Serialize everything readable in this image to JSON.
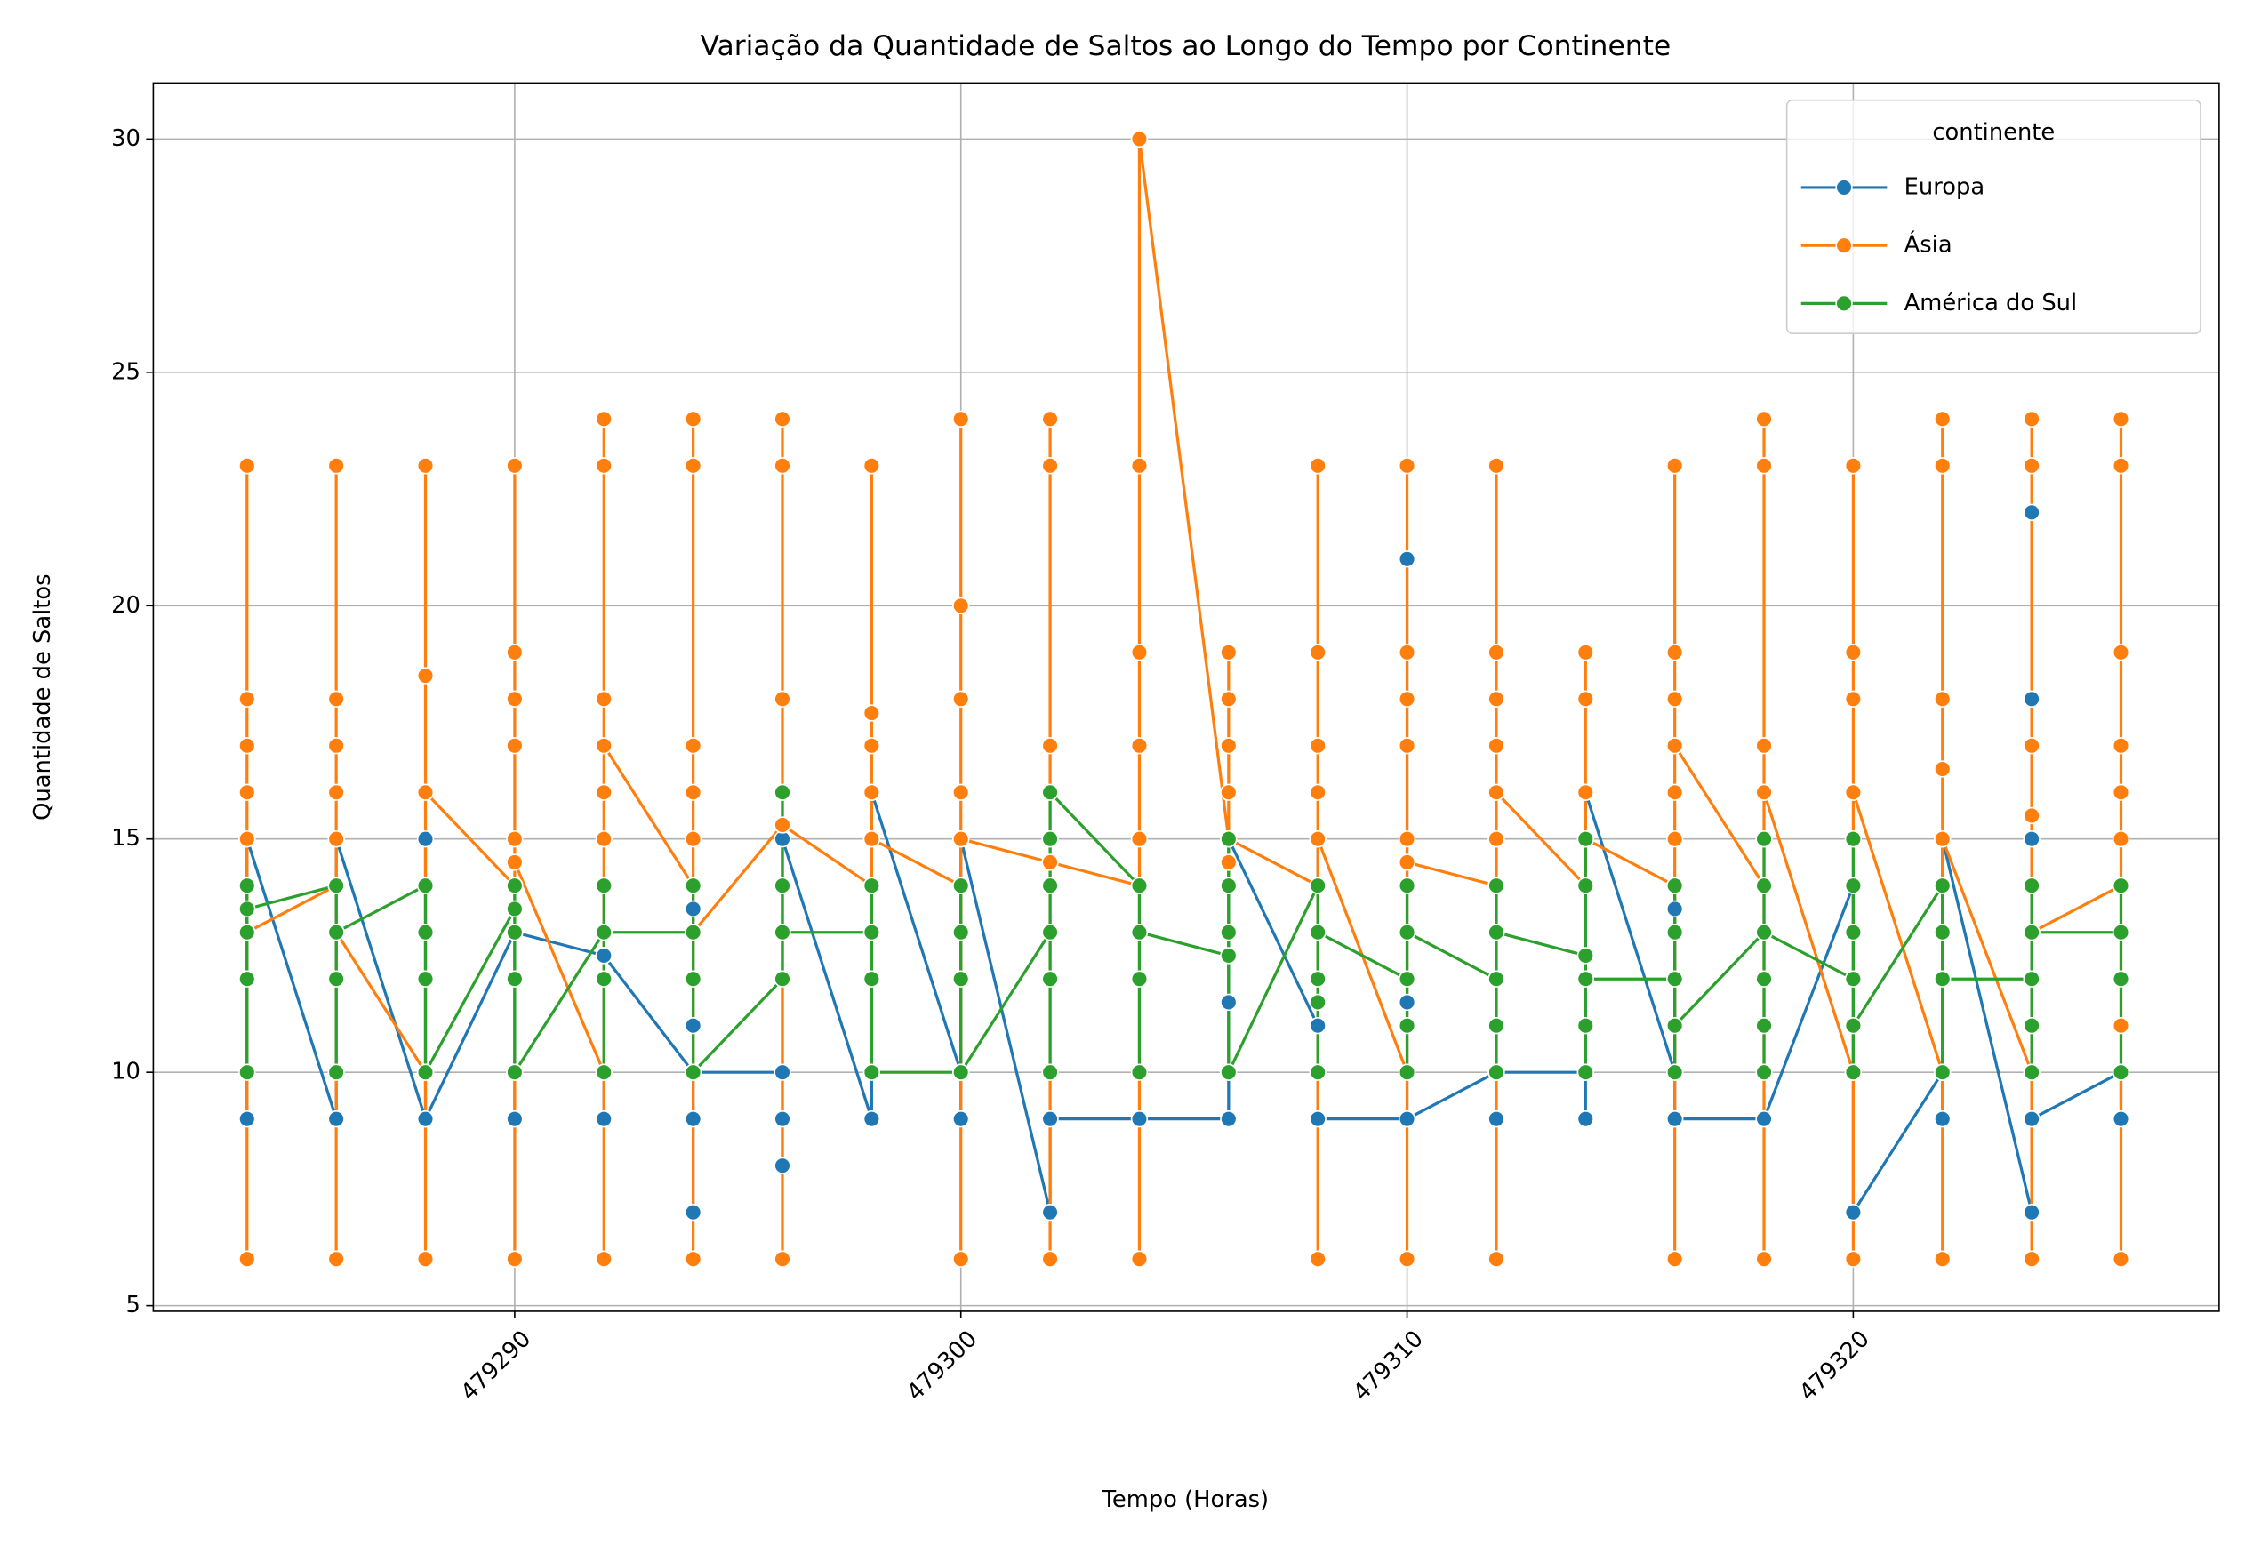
{
  "chart_data": {
    "type": "line",
    "title": "Variação da Quantidade de Saltos ao Longo do Tempo por Continente",
    "x_label": "Tempo (Horas)",
    "y_label": "Quantidade de Saltos",
    "legend_title": "continente",
    "legend_position": "upper right",
    "grid": true,
    "xlim": [
      479281.9,
      479328.2
    ],
    "xticks": [
      479290,
      479300,
      479310,
      479320
    ],
    "ylim": [
      4.88,
      31.2
    ],
    "yticks": [
      5,
      10,
      15,
      20,
      25,
      30
    ],
    "series": [
      {
        "name": "Europa",
        "color": "#1f77b4",
        "x": [
          479284,
          479284,
          479286,
          479286,
          479288,
          479288,
          479288,
          479290,
          479290,
          479290,
          479292,
          479292,
          479292,
          479294,
          479294,
          479294,
          479294,
          479294,
          479294,
          479296,
          479296,
          479296,
          479296,
          479298,
          479298,
          479300,
          479300,
          479300,
          479302,
          479302,
          479304,
          479306,
          479306,
          479306,
          479308,
          479308,
          479308,
          479310,
          479310,
          479310,
          479310,
          479312,
          479312,
          479312,
          479312,
          479312,
          479314,
          479314,
          479314,
          479316,
          479316,
          479316,
          479316,
          479318,
          479320,
          479320,
          479322,
          479322,
          479322,
          479324,
          479324,
          479324,
          479324,
          479324,
          479326,
          479326
        ],
        "values": [
          9,
          15,
          9,
          15,
          9,
          15,
          9,
          13,
          9,
          13,
          12.5,
          9,
          12.5,
          10,
          7,
          13.5,
          11,
          9,
          10,
          10,
          8,
          9,
          15,
          9,
          16,
          10,
          9,
          15,
          7,
          9,
          9,
          9,
          11.5,
          15,
          11,
          15,
          9,
          9,
          11.5,
          21,
          9,
          10,
          13,
          15,
          9,
          10,
          10,
          9,
          16,
          10,
          9,
          13.5,
          9,
          9,
          14,
          7,
          10,
          9,
          15,
          7,
          18,
          22,
          15,
          9,
          10,
          9
        ]
      },
      {
        "name": "Ásia",
        "color": "#ff7f0e",
        "x": [
          479284,
          479284,
          479284,
          479284,
          479284,
          479284,
          479284,
          479284,
          479286,
          479286,
          479286,
          479286,
          479286,
          479286,
          479286,
          479286,
          479288,
          479288,
          479288,
          479288,
          479288,
          479288,
          479290,
          479290,
          479290,
          479290,
          479290,
          479290,
          479290,
          479290,
          479292,
          479292,
          479292,
          479292,
          479292,
          479292,
          479292,
          479292,
          479294,
          479294,
          479294,
          479294,
          479294,
          479294,
          479294,
          479294,
          479296,
          479296,
          479296,
          479296,
          479296,
          479296,
          479296,
          479298,
          479298,
          479298,
          479298,
          479298,
          479298,
          479298,
          479300,
          479300,
          479300,
          479300,
          479300,
          479300,
          479300,
          479302,
          479302,
          479302,
          479302,
          479302,
          479302,
          479302,
          479304,
          479304,
          479304,
          479304,
          479304,
          479304,
          479304,
          479306,
          479306,
          479306,
          479306,
          479306,
          479306,
          479306,
          479306,
          479308,
          479308,
          479308,
          479308,
          479308,
          479308,
          479308,
          479308,
          479310,
          479310,
          479310,
          479310,
          479310,
          479310,
          479310,
          479310,
          479312,
          479312,
          479312,
          479312,
          479312,
          479312,
          479312,
          479312,
          479314,
          479314,
          479314,
          479314,
          479314,
          479314,
          479316,
          479316,
          479316,
          479316,
          479316,
          479316,
          479316,
          479316,
          479318,
          479318,
          479318,
          479318,
          479318,
          479318,
          479318,
          479318,
          479320,
          479320,
          479320,
          479320,
          479320,
          479320,
          479320,
          479320,
          479322,
          479322,
          479322,
          479322,
          479322,
          479322,
          479322,
          479322,
          479324,
          479324,
          479324,
          479324,
          479324,
          479324,
          479324,
          479326,
          479326,
          479326,
          479326,
          479326,
          479326,
          479326,
          479326,
          479326
        ],
        "values": [
          13,
          6,
          15,
          16,
          17,
          18,
          23,
          13,
          14,
          6,
          15,
          16,
          17,
          18,
          23,
          13,
          10,
          6,
          16,
          18.5,
          23,
          16,
          14,
          6,
          15,
          17,
          18,
          19,
          23,
          14.5,
          10,
          6,
          15,
          16,
          18,
          23,
          24,
          17,
          14,
          6,
          15,
          16,
          17,
          23,
          24,
          13,
          15.3,
          6,
          14,
          18,
          23,
          24,
          15.3,
          14,
          15,
          16,
          17,
          17.7,
          23,
          15,
          14,
          6,
          16,
          18,
          20,
          24,
          15,
          14.5,
          6,
          15,
          17,
          23,
          24,
          14.5,
          14,
          6,
          15,
          17,
          19,
          23,
          30,
          15,
          14,
          14.5,
          16,
          17,
          18,
          19,
          15,
          14,
          6,
          15,
          16,
          17,
          19,
          23,
          15,
          10,
          6,
          15,
          17,
          18,
          19,
          23,
          14.5,
          14,
          6,
          15,
          17,
          18,
          19,
          23,
          16,
          14,
          15,
          16,
          18,
          19,
          15,
          14,
          6,
          15,
          16,
          18,
          19,
          23,
          17,
          14,
          6,
          15,
          16,
          17,
          23,
          24,
          16,
          10,
          6,
          15,
          16,
          18,
          19,
          23,
          16,
          10,
          6,
          15,
          16.5,
          18,
          23,
          24,
          15,
          10,
          6,
          15.5,
          17,
          23,
          24,
          13,
          14,
          6,
          11,
          15,
          16,
          17,
          19,
          23,
          24
        ]
      },
      {
        "name": "América do Sul",
        "color": "#2ca02c",
        "x": [
          479284,
          479284,
          479284,
          479284,
          479284,
          479286,
          479286,
          479286,
          479286,
          479288,
          479288,
          479288,
          479288,
          479288,
          479290,
          479290,
          479290,
          479290,
          479290,
          479290,
          479292,
          479292,
          479292,
          479292,
          479292,
          479294,
          479294,
          479294,
          479294,
          479294,
          479296,
          479296,
          479296,
          479296,
          479298,
          479298,
          479298,
          479298,
          479300,
          479300,
          479300,
          479300,
          479300,
          479302,
          479302,
          479302,
          479302,
          479302,
          479302,
          479304,
          479304,
          479304,
          479304,
          479306,
          479306,
          479306,
          479306,
          479306,
          479306,
          479308,
          479308,
          479308,
          479308,
          479308,
          479310,
          479310,
          479310,
          479310,
          479310,
          479312,
          479312,
          479312,
          479312,
          479312,
          479314,
          479314,
          479314,
          479314,
          479314,
          479314,
          479316,
          479316,
          479316,
          479316,
          479316,
          479318,
          479318,
          479318,
          479318,
          479318,
          479318,
          479318,
          479320,
          479320,
          479320,
          479320,
          479320,
          479320,
          479322,
          479322,
          479322,
          479322,
          479324,
          479324,
          479324,
          479324,
          479324,
          479326,
          479326,
          479326,
          479326
        ],
        "values": [
          14,
          10,
          12,
          13,
          13.5,
          14,
          10,
          12,
          13,
          14,
          10,
          12,
          13,
          10,
          13.5,
          10,
          12,
          13,
          14,
          10,
          13,
          10,
          12,
          14,
          13,
          13,
          10,
          12,
          14,
          10,
          12,
          14,
          16,
          13,
          13,
          12,
          14,
          10,
          10,
          12,
          13,
          14,
          10,
          13,
          10,
          12,
          14,
          15,
          16,
          14,
          10,
          12,
          13,
          12.5,
          10,
          13,
          14,
          15,
          10,
          14,
          10,
          11.5,
          12,
          13,
          12,
          10,
          11,
          14,
          13,
          12,
          10,
          11,
          14,
          13,
          12.5,
          10,
          11,
          14,
          15,
          12,
          12,
          10,
          13,
          14,
          11,
          13,
          10,
          11,
          12,
          14,
          15,
          13,
          12,
          10,
          13,
          14,
          15,
          11,
          14,
          10,
          13,
          12,
          12,
          10,
          11,
          14,
          13,
          13,
          10,
          12,
          14
        ]
      }
    ]
  }
}
